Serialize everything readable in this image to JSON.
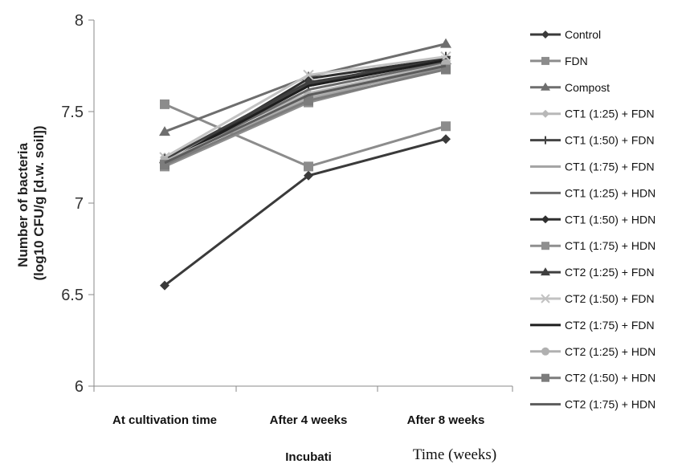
{
  "chart_data": {
    "type": "line",
    "categories": [
      "At cultivation time",
      "After 4 weeks",
      "After 8 weeks"
    ],
    "ylabel_line1": "Number of bacteria",
    "ylabel_line2": "(log10 CFU/g [d.w. soil])",
    "xlabel_part1": "Incubati",
    "xlabel_part2": "Time (weeks)",
    "ylim": [
      6,
      8
    ],
    "yticks": [
      "6",
      "6.5",
      "7",
      "7.5",
      "8"
    ],
    "grid": false,
    "legend_position": "right",
    "series": [
      {
        "name": "Control",
        "values": [
          6.55,
          7.15,
          7.35
        ],
        "marker": "diamond",
        "color": "#3a3a3a"
      },
      {
        "name": "FDN",
        "values": [
          7.54,
          7.2,
          7.42
        ],
        "marker": "square",
        "color": "#8c8c8c"
      },
      {
        "name": "Compost",
        "values": [
          7.39,
          7.69,
          7.87
        ],
        "marker": "triangle",
        "color": "#6e6e6e"
      },
      {
        "name": "CT1  (1:25) + FDN",
        "values": [
          7.25,
          7.6,
          7.76
        ],
        "marker": "diamond",
        "color": "#b8b8b8"
      },
      {
        "name": "CT1  (1:50) + FDN",
        "values": [
          7.22,
          7.65,
          7.8
        ],
        "marker": "plus",
        "color": "#444444"
      },
      {
        "name": "CT1  (1:75) + FDN",
        "values": [
          7.23,
          7.57,
          7.75
        ],
        "marker": "none",
        "color": "#a5a5a5"
      },
      {
        "name": "CT1 (1:25) + HDN",
        "values": [
          7.22,
          7.62,
          7.77
        ],
        "marker": "none",
        "color": "#6a6a6a"
      },
      {
        "name": "CT1 (1:50) + HDN",
        "values": [
          7.21,
          7.68,
          7.79
        ],
        "marker": "diamond",
        "color": "#2f2f2f"
      },
      {
        "name": "CT1 (1:75) + HDN",
        "values": [
          7.2,
          7.55,
          7.74
        ],
        "marker": "square",
        "color": "#8f8f8f"
      },
      {
        "name": "CT2 (1:25) + FDN",
        "values": [
          7.24,
          7.66,
          7.78
        ],
        "marker": "triangle",
        "color": "#3f3f3f"
      },
      {
        "name": "CT2  (1:50) + FDN",
        "values": [
          7.25,
          7.7,
          7.8
        ],
        "marker": "x",
        "color": "#c2c2c2"
      },
      {
        "name": "CT2  (1:75) + FDN",
        "values": [
          7.22,
          7.64,
          7.78
        ],
        "marker": "none",
        "color": "#1e1e1e"
      },
      {
        "name": "CT2  (1:25) + HDN",
        "values": [
          7.23,
          7.58,
          7.76
        ],
        "marker": "circle",
        "color": "#b0b0b0"
      },
      {
        "name": "CT2  (1:50) + HDN",
        "values": [
          7.21,
          7.56,
          7.73
        ],
        "marker": "square",
        "color": "#7c7c7c"
      },
      {
        "name": "CT2  (1:75) + HDN",
        "values": [
          7.22,
          7.59,
          7.75
        ],
        "marker": "none",
        "color": "#5c5c5c"
      }
    ]
  }
}
